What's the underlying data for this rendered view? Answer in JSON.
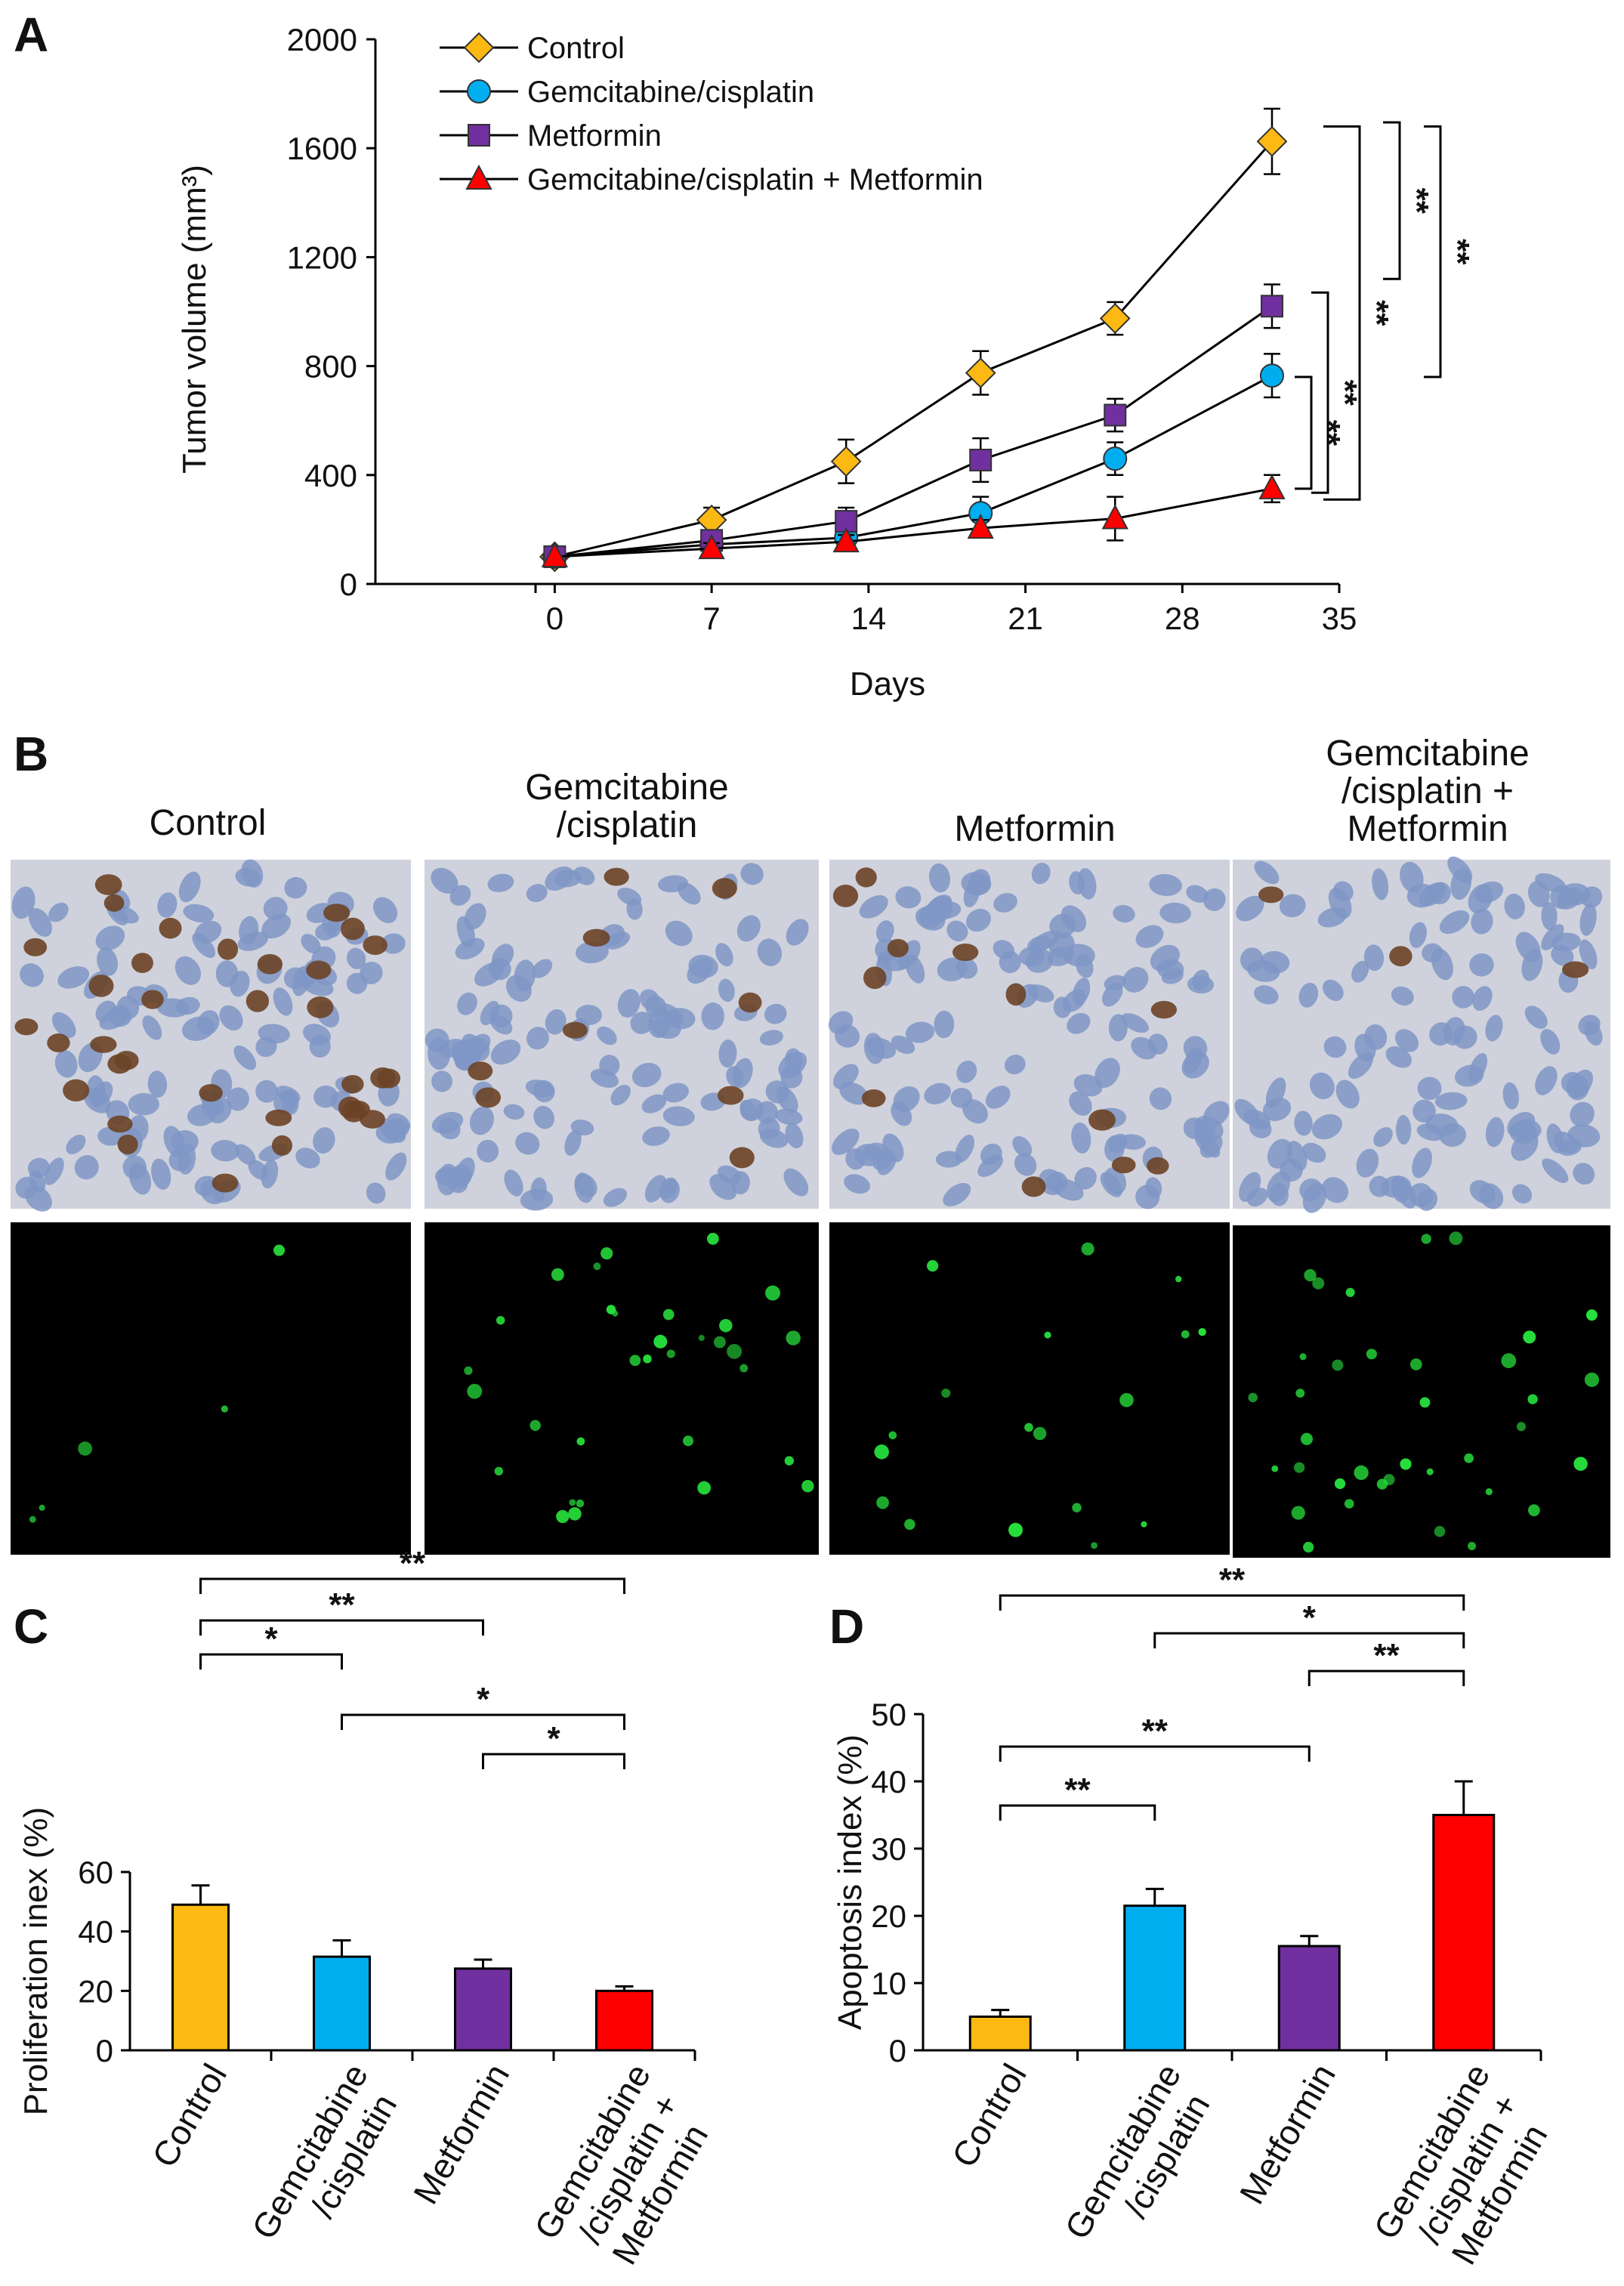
{
  "colors": {
    "control": "#FDB913",
    "gem": "#00AEEF",
    "met": "#7030A0",
    "combo": "#FF0000",
    "ihc_bg": "#cfd2dc",
    "ihc_blue": "#7f97c6",
    "ihc_brown": "#6b4226",
    "tunel_bg": "#000000",
    "tunel_green": "#27e23d"
  },
  "panelA": {
    "letter": "A",
    "ylabel": "Tumor volume (mm³)",
    "xlabel": "Days",
    "yticks": [
      "0",
      "400",
      "800",
      "1200",
      "1600",
      "2000"
    ],
    "xticks": [
      "0",
      "7",
      "14",
      "21",
      "28",
      "35"
    ],
    "legend": [
      {
        "label": "Control",
        "icon": "diamond-marker-icon"
      },
      {
        "label": "Gemcitabine/cisplatin",
        "icon": "circle-marker-icon"
      },
      {
        "label": "Metformin",
        "icon": "square-marker-icon"
      },
      {
        "label": "Gemcitabine/cisplatin + Metformin",
        "icon": "triangle-marker-icon"
      }
    ],
    "sig": [
      "**",
      "**",
      "**",
      "**",
      "**"
    ]
  },
  "panelB": {
    "letter": "B",
    "titles": [
      [
        "Control"
      ],
      [
        "Gemcitabine",
        "/cisplatin"
      ],
      [
        "Metformin"
      ],
      [
        "Gemcitabine",
        "/cisplatin +",
        "Metformin"
      ]
    ]
  },
  "panelC": {
    "letter": "C",
    "ylabel": "Proliferation inex (%)",
    "yticks": [
      "0",
      "20",
      "40",
      "60"
    ],
    "categories": [
      [
        "Control"
      ],
      [
        "Gemcitabine",
        "/cisplatin"
      ],
      [
        "Metformin"
      ],
      [
        "Gemcitabine",
        "/cisplatin +",
        "Metformin"
      ]
    ],
    "sig": [
      "*",
      "**",
      "**",
      "*",
      "*"
    ]
  },
  "panelD": {
    "letter": "D",
    "ylabel": "Apoptosis index (%)",
    "yticks": [
      "0",
      "10",
      "20",
      "30",
      "40",
      "50"
    ],
    "categories": [
      [
        "Control"
      ],
      [
        "Gemcitabine",
        "/cisplatin"
      ],
      [
        "Metformin"
      ],
      [
        "Gemcitabine",
        "/cisplatin +",
        "Metformin"
      ]
    ],
    "sig": [
      "**",
      "*",
      "**",
      "**",
      "**"
    ]
  },
  "chart_data": [
    {
      "type": "line",
      "xlabel": "Days",
      "ylabel": "Tumor volume (mm³)",
      "xlim": [
        -8,
        35
      ],
      "ylim": [
        0,
        2000
      ],
      "x": [
        0,
        7,
        13,
        19,
        25,
        32
      ],
      "series": [
        {
          "name": "Control",
          "values": [
            100,
            235,
            450,
            775,
            975,
            1625
          ],
          "errors": [
            0,
            45,
            80,
            80,
            60,
            120
          ]
        },
        {
          "name": "Gemcitabine/cisplatin",
          "values": [
            100,
            145,
            170,
            260,
            460,
            765
          ],
          "errors": [
            0,
            25,
            30,
            60,
            60,
            80
          ]
        },
        {
          "name": "Metformin",
          "values": [
            100,
            160,
            230,
            455,
            620,
            1020
          ],
          "errors": [
            0,
            30,
            50,
            80,
            60,
            80
          ]
        },
        {
          "name": "Gemcitabine/cisplatin + Metformin",
          "values": [
            100,
            130,
            155,
            205,
            240,
            350
          ],
          "errors": [
            0,
            20,
            25,
            30,
            80,
            50
          ]
        }
      ]
    },
    {
      "type": "bar",
      "ylabel": "Proliferation inex (%)",
      "ylim": [
        0,
        60
      ],
      "categories": [
        "Control",
        "Gemcitabine/cisplatin",
        "Metformin",
        "Gemcitabine/cisplatin + Metformin"
      ],
      "values": [
        49,
        31.5,
        27.5,
        20
      ],
      "errors": [
        6.5,
        5.5,
        3,
        1.5
      ]
    },
    {
      "type": "bar",
      "ylabel": "Apoptosis index (%)",
      "ylim": [
        0,
        50
      ],
      "categories": [
        "Control",
        "Gemcitabine/cisplatin",
        "Metformin",
        "Gemcitabine/cisplatin + Metformin"
      ],
      "values": [
        5,
        21.5,
        15.5,
        35
      ],
      "errors": [
        1,
        2.5,
        1.5,
        5
      ]
    }
  ]
}
